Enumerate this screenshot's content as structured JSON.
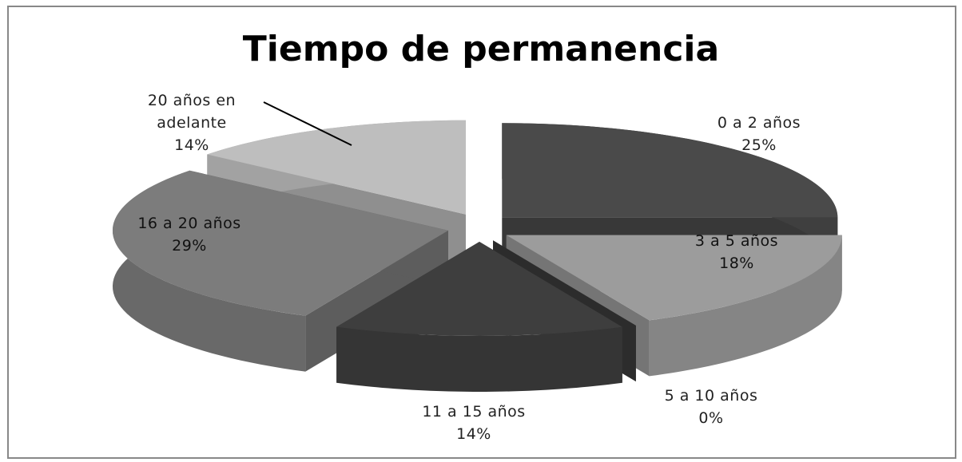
{
  "chart_data": {
    "type": "pie",
    "title": "Tiempo de permanencia",
    "categories": [
      "0 a 2 años",
      "3 a 5 años",
      "5 a 10 años",
      "11 a 15 años",
      "16 a 20 años",
      "20 años en adelante"
    ],
    "values": [
      25,
      18,
      0,
      14,
      29,
      14
    ],
    "value_labels": [
      "25%",
      "18%",
      "0%",
      "14%",
      "29%",
      "14%"
    ],
    "colors": [
      "#4a4a4a",
      "#9c9c9c",
      "#3a3a3a",
      "#3e3e3e",
      "#7c7c7c",
      "#bebebe"
    ]
  }
}
